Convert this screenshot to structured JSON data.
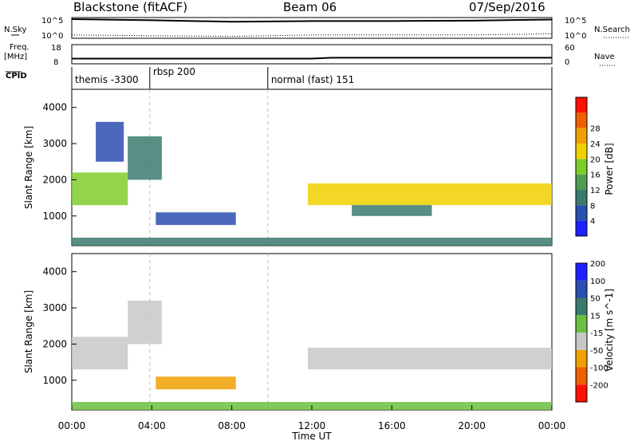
{
  "header": {
    "station": "Blackstone (fitACF)",
    "beam": "Beam 06",
    "date": "07/Sep/2016"
  },
  "top_panels": {
    "nsky_label": "N.Sky",
    "nsky_ticks": [
      "10^5",
      "10^0"
    ],
    "nsearch_label": "N.Search",
    "nsearch_ticks": [
      "10^5",
      "10^0"
    ],
    "freq_label_line1": "Freq.",
    "freq_label_line2": "[MHz]",
    "freq_ticks": [
      "18",
      "8"
    ],
    "nave_label": "Nave",
    "nave_ticks": [
      "60",
      "0"
    ],
    "cpid_label": "CPID"
  },
  "cpid_segments": [
    {
      "label": "themis -3300",
      "start_hour": 0
    },
    {
      "label": "rbsp 200",
      "start_hour": 3.9
    },
    {
      "label": "normal (fast) 151",
      "start_hour": 9.8
    }
  ],
  "power_panel": {
    "ylabel": "Slant Range [km]",
    "yticks": [
      "1000",
      "2000",
      "3000",
      "4000"
    ],
    "colorbar_label": "Power [dB]",
    "colorbar_ticks": [
      "4",
      "8",
      "12",
      "16",
      "20",
      "24",
      "28"
    ],
    "colors": [
      "#2020ff",
      "#2a4fb0",
      "#3b7a6e",
      "#4f9e52",
      "#7fcd2c",
      "#f0d000",
      "#f0a000",
      "#f06000",
      "#ff1000"
    ]
  },
  "velocity_panel": {
    "ylabel": "Slant Range [km]",
    "yticks": [
      "1000",
      "2000",
      "3000",
      "4000"
    ],
    "colorbar_label": "Velocity [m s^-1]",
    "colorbar_ticks": [
      "200",
      "100",
      "50",
      "15",
      "-15",
      "-50",
      "-100",
      "-200"
    ],
    "colors": [
      "#2020ff",
      "#2a4fb0",
      "#3b7a6e",
      "#6cc040",
      "#c8c8c8",
      "#f0a000",
      "#f06000",
      "#ff1000"
    ]
  },
  "xaxis": {
    "label": "Time UT",
    "ticks": [
      "00:00",
      "04:00",
      "08:00",
      "12:00",
      "16:00",
      "20:00",
      "00:00"
    ]
  },
  "chart_data": [
    {
      "type": "line",
      "title": "Blackstone (fitACF) Beam 06 07/Sep/2016",
      "subtitle": "N.Sky / N.Search",
      "x": [
        0,
        4,
        8,
        12,
        16,
        20,
        24
      ],
      "series": [
        {
          "name": "N.Sky",
          "values": [
            100000,
            50000,
            20000,
            30000,
            30000,
            40000,
            80000
          ]
        },
        {
          "name": "N.Search",
          "values": [
            5,
            3,
            2,
            5,
            5,
            5,
            10
          ]
        }
      ]
    },
    {
      "type": "line",
      "subtitle": "Freq. [MHz] / Nave",
      "x": [
        0,
        4,
        8,
        12,
        13,
        16,
        20,
        24
      ],
      "series": [
        {
          "name": "Freq.",
          "values": [
            10.5,
            10.5,
            10.5,
            10.5,
            11,
            11,
            11,
            11
          ]
        }
      ]
    },
    {
      "type": "heatmap",
      "subtitle": "Power [dB]",
      "xlabel": "Time UT",
      "ylabel": "Slant Range [km]",
      "xlim": [
        0,
        24
      ],
      "ylim": [
        180,
        4500
      ],
      "bands": [
        {
          "t0": 0.0,
          "t1": 2.8,
          "r0": 1300,
          "r1": 2200,
          "power": 20
        },
        {
          "t0": 1.2,
          "t1": 2.6,
          "r0": 2500,
          "r1": 3600,
          "power": 8
        },
        {
          "t0": 2.8,
          "t1": 4.5,
          "r0": 2000,
          "r1": 3200,
          "power": 10
        },
        {
          "t0": 4.2,
          "t1": 8.2,
          "r0": 750,
          "r1": 1100,
          "power": 6
        },
        {
          "t0": 11.8,
          "t1": 24.0,
          "r0": 1300,
          "r1": 1900,
          "power": 22
        },
        {
          "t0": 14.0,
          "t1": 18.0,
          "r0": 1000,
          "r1": 1300,
          "power": 10
        },
        {
          "t0": 0.0,
          "t1": 24.0,
          "r0": 180,
          "r1": 400,
          "power": 10
        }
      ]
    },
    {
      "type": "heatmap",
      "subtitle": "Velocity [m s^-1]",
      "xlabel": "Time UT",
      "ylabel": "Slant Range [km]",
      "xlim": [
        0,
        24
      ],
      "ylim": [
        180,
        4500
      ],
      "bands": [
        {
          "t0": 0.0,
          "t1": 2.8,
          "r0": 1300,
          "r1": 2200,
          "velocity": 0
        },
        {
          "t0": 2.8,
          "t1": 4.5,
          "r0": 2000,
          "r1": 3200,
          "velocity": 0
        },
        {
          "t0": 4.2,
          "t1": 8.2,
          "r0": 750,
          "r1": 1100,
          "velocity": -30
        },
        {
          "t0": 11.8,
          "t1": 24.0,
          "r0": 1300,
          "r1": 1900,
          "velocity": 0
        },
        {
          "t0": 0.0,
          "t1": 24.0,
          "r0": 180,
          "r1": 400,
          "velocity": 40
        }
      ]
    }
  ]
}
